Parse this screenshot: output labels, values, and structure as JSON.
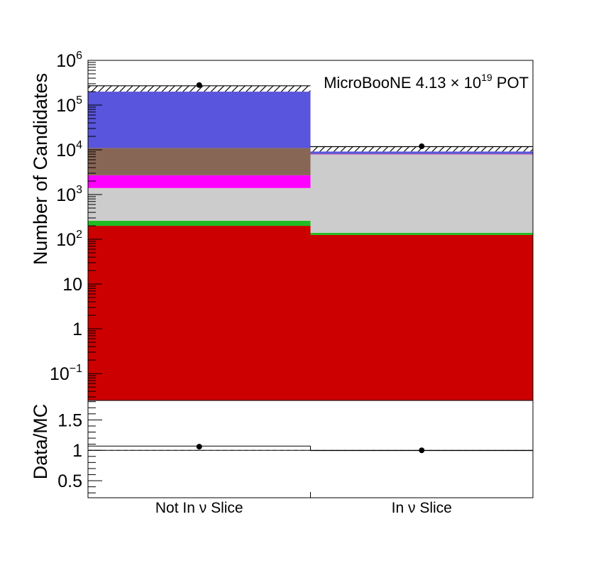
{
  "chart_data": [
    {
      "type": "bar",
      "stacked": true,
      "log_scale": true,
      "categories": [
        "Not In ν Slice",
        "In ν Slice"
      ],
      "ylabel": "Number of Candidates",
      "ylim": [
        0.025,
        1000000
      ],
      "y_ticks": [
        {
          "value": 1000000,
          "base": "10",
          "exp": "6"
        },
        {
          "value": 100000,
          "base": "10",
          "exp": "5"
        },
        {
          "value": 10000,
          "base": "10",
          "exp": "4"
        },
        {
          "value": 1000,
          "base": "10",
          "exp": "3"
        },
        {
          "value": 100,
          "base": "10",
          "exp": "2"
        },
        {
          "value": 10,
          "base": "10",
          "exp": ""
        },
        {
          "value": 1,
          "base": "1",
          "exp": ""
        },
        {
          "value": 0.1,
          "base": "10",
          "exp": "−1"
        }
      ],
      "annotation": {
        "pre": "MicroBooNE 4.13 × 10",
        "sup": "19",
        "post": " POT"
      },
      "stack": [
        {
          "color": "#cc0000",
          "tops": [
            200,
            125
          ]
        },
        {
          "color": "#22bb22",
          "tops": [
            260,
            140
          ]
        },
        {
          "color": "#cccccc",
          "tops": [
            1400,
            8000
          ]
        },
        {
          "color": "#ff00ff",
          "tops": [
            2700,
            8050
          ]
        },
        {
          "color": "#886655",
          "tops": [
            11000,
            8150
          ]
        },
        {
          "color": "#5a55dd",
          "tops": [
            200000,
            9200
          ]
        }
      ],
      "mc_total": [
        270000,
        11800
      ],
      "mc_uncertainty": [
        [
          200000,
          270000
        ],
        [
          9200,
          12000
        ]
      ],
      "data_points": [
        280000,
        12000
      ]
    },
    {
      "type": "scatter",
      "ylabel": "Data/MC",
      "ylim": [
        0.22,
        1.82
      ],
      "y_ticks": [
        {
          "value": 1.5,
          "label": "1.5"
        },
        {
          "value": 1,
          "label": "1"
        },
        {
          "value": 0.5,
          "label": "0.5"
        }
      ],
      "reference_line": 1,
      "ratio": [
        1.06,
        1.0
      ],
      "mc_band": [
        [
          1.0,
          1.07
        ],
        [
          0.995,
          1.0
        ]
      ]
    }
  ]
}
